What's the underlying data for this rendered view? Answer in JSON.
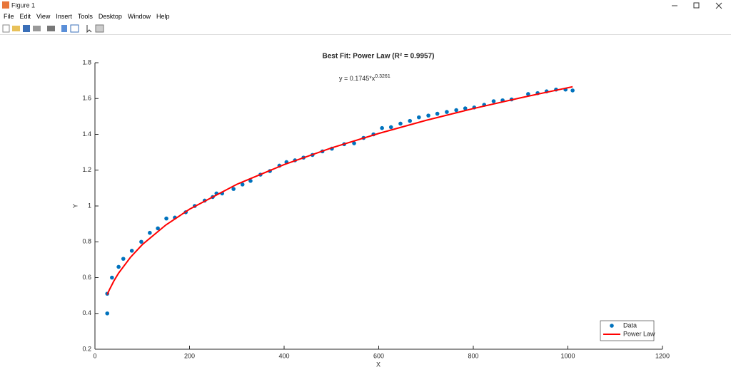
{
  "window": {
    "title": "Figure 1",
    "menu": [
      "File",
      "Edit",
      "View",
      "Insert",
      "Tools",
      "Desktop",
      "Window",
      "Help"
    ]
  },
  "chart_data": {
    "type": "scatter",
    "title": "Best Fit: Power Law (R² = 0.9957)",
    "annotation": {
      "base": "y = 0.1745*x",
      "exponent": "0.3261"
    },
    "x_label": "X",
    "y_label": "Y",
    "xlim": [
      0,
      1200
    ],
    "xticks": [
      0,
      200,
      400,
      600,
      800,
      1000,
      1200
    ],
    "ylim": [
      0.2,
      1.8
    ],
    "yticks": [
      0.2,
      0.4,
      0.6,
      0.8,
      1,
      1.2,
      1.4,
      1.6,
      1.8
    ],
    "legend": "lower right",
    "series": [
      {
        "name": "Data",
        "color": "#0072bd",
        "mode": "markers",
        "x": [
          26,
          26,
          36,
          50,
          60,
          78,
          98,
          116,
          133,
          151,
          169,
          192,
          211,
          232,
          249,
          257,
          269,
          293,
          312,
          329,
          350,
          370,
          390,
          405,
          423,
          441,
          460,
          481,
          501,
          527,
          548,
          568,
          589,
          607,
          626,
          646,
          666,
          685,
          705,
          724,
          744,
          764,
          783,
          802,
          823,
          843,
          862,
          881,
          916,
          936,
          955,
          975,
          995,
          1010
        ],
        "values": [
          0.4,
          0.51,
          0.6,
          0.66,
          0.705,
          0.75,
          0.8,
          0.85,
          0.875,
          0.93,
          0.935,
          0.965,
          1.0,
          1.03,
          1.05,
          1.07,
          1.07,
          1.095,
          1.12,
          1.14,
          1.175,
          1.195,
          1.225,
          1.245,
          1.255,
          1.27,
          1.285,
          1.305,
          1.32,
          1.345,
          1.35,
          1.38,
          1.4,
          1.435,
          1.44,
          1.46,
          1.475,
          1.495,
          1.505,
          1.515,
          1.525,
          1.535,
          1.545,
          1.55,
          1.565,
          1.585,
          1.59,
          1.595,
          1.625,
          1.63,
          1.64,
          1.65,
          1.65,
          1.645
        ]
      },
      {
        "name": "Power Law",
        "color": "#ff0000",
        "mode": "line",
        "x": [
          26,
          30,
          40,
          50,
          75,
          100,
          150,
          200,
          300,
          400,
          500,
          600,
          700,
          800,
          900,
          1010
        ],
        "values": [
          0.505,
          0.529,
          0.581,
          0.625,
          0.713,
          0.784,
          0.894,
          0.982,
          1.121,
          1.231,
          1.324,
          1.405,
          1.478,
          1.544,
          1.604,
          1.666
        ]
      }
    ]
  }
}
